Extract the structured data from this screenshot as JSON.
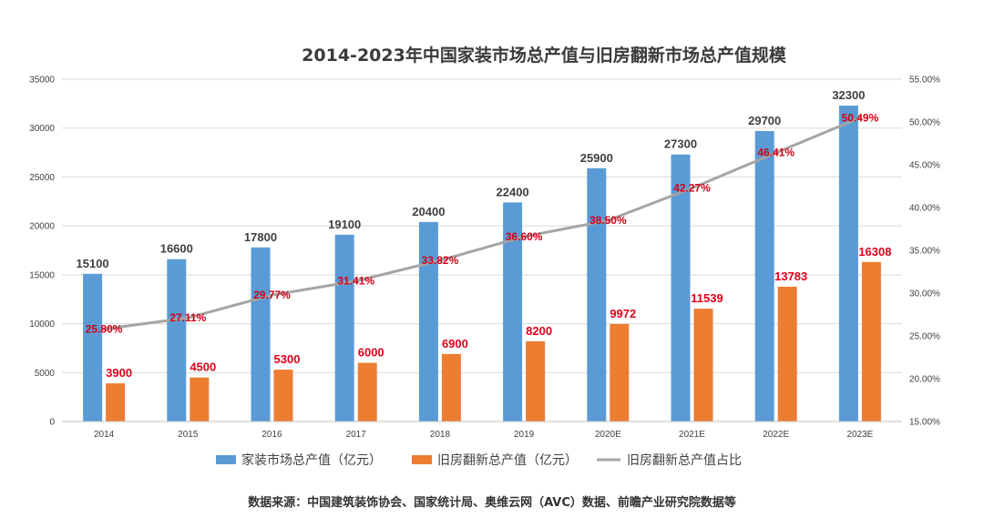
{
  "chart_data": {
    "type": "bar",
    "title": "2014-2023年中国家装市场总产值与旧房翻新市场总产值规模",
    "categories": [
      "2014",
      "2015",
      "2016",
      "2017",
      "2018",
      "2019",
      "2020E",
      "2021E",
      "2022E",
      "2023E"
    ],
    "series": [
      {
        "name": "家装市场总产值（亿元）",
        "kind": "bar",
        "axis": "left",
        "color": "#5b9bd5",
        "values": [
          15100,
          16600,
          17800,
          19100,
          20400,
          22400,
          25900,
          27300,
          29700,
          32300
        ],
        "labels": [
          "15100",
          "16600",
          "17800",
          "19100",
          "20400",
          "22400",
          "25900",
          "27300",
          "29700",
          "32300"
        ]
      },
      {
        "name": "旧房翻新总产值（亿元）",
        "kind": "bar",
        "axis": "left",
        "color": "#ed7d31",
        "values": [
          3900,
          4500,
          5300,
          6000,
          6900,
          8200,
          9972,
          11539,
          13783,
          16308
        ],
        "labels": [
          "3900",
          "4500",
          "5300",
          "6000",
          "6900",
          "8200",
          "9972",
          "11539",
          "13783",
          "16308"
        ]
      },
      {
        "name": "旧房翻新总产值占比",
        "kind": "line",
        "axis": "right",
        "color": "#a5a5a5",
        "values": [
          25.8,
          27.11,
          29.77,
          31.41,
          33.82,
          36.6,
          38.5,
          42.27,
          46.41,
          50.49
        ],
        "labels": [
          "25.80%",
          "27.11%",
          "29.77%",
          "31.41%",
          "33.82%",
          "36.60%",
          "38.50%",
          "42.27%",
          "46.41%",
          "50.49%"
        ]
      }
    ],
    "y_left": {
      "min": 0,
      "max": 35000,
      "ticks": [
        "0",
        "5000",
        "10000",
        "15000",
        "20000",
        "25000",
        "30000",
        "35000"
      ]
    },
    "y_right": {
      "min": 15,
      "max": 55,
      "ticks": [
        "15.00%",
        "20.00%",
        "25.00%",
        "30.00%",
        "35.00%",
        "40.00%",
        "45.00%",
        "50.00%",
        "55.00%"
      ]
    },
    "grid": true,
    "legend_position": "bottom"
  },
  "source_note": "数据来源：中国建筑装饰协会、国家统计局、奥维云网（AVC）数据、前瞻产业研究院数据等"
}
